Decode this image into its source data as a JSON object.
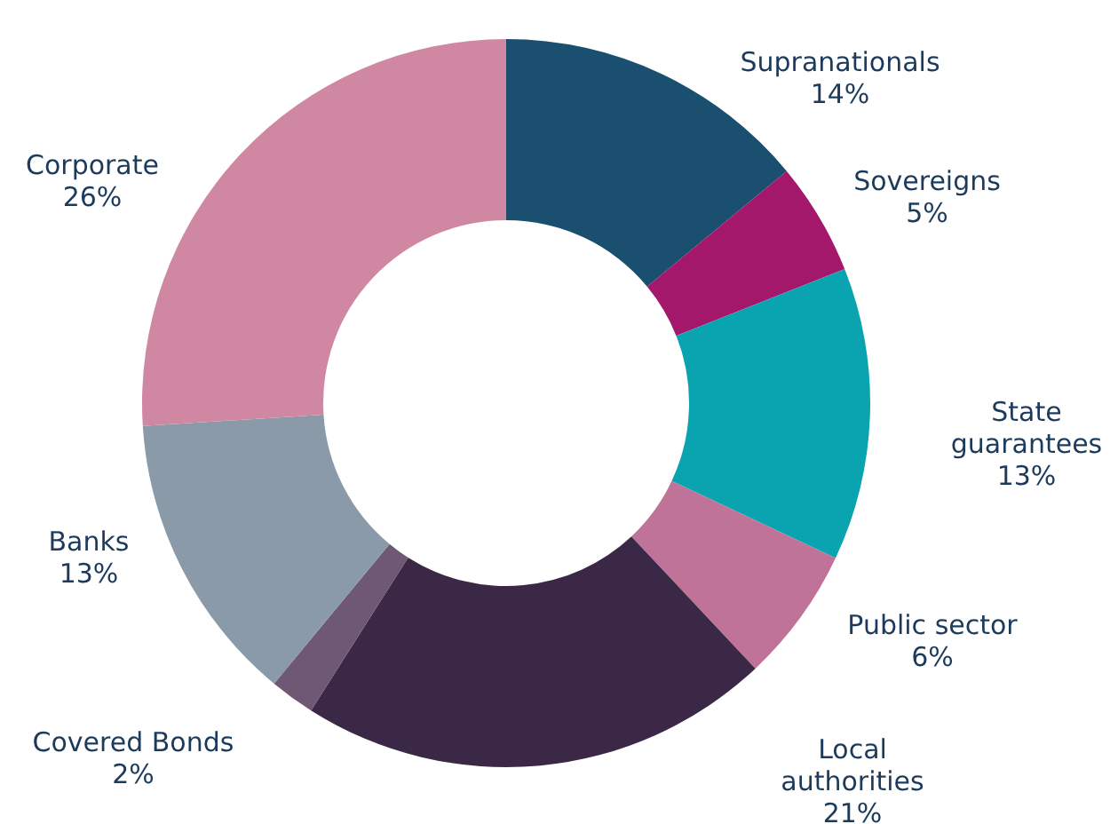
{
  "chart_data": {
    "type": "donut",
    "categories": [
      "Supranationals",
      "Sovereigns",
      "State guarantees",
      "Public sector",
      "Local authorities",
      "Covered Bonds",
      "Banks",
      "Corporate"
    ],
    "values": [
      14,
      5,
      13,
      6,
      21,
      2,
      13,
      26
    ],
    "colors": [
      "#1a4f70",
      "#a3186a",
      "#0aa3b0",
      "#c07399",
      "#3b2846",
      "#6e5873",
      "#8a9aa8",
      "#d088a2"
    ],
    "value_labels": [
      "14%",
      "5%",
      "13%",
      "6%",
      "21%",
      "2%",
      "13%",
      "26%"
    ]
  }
}
